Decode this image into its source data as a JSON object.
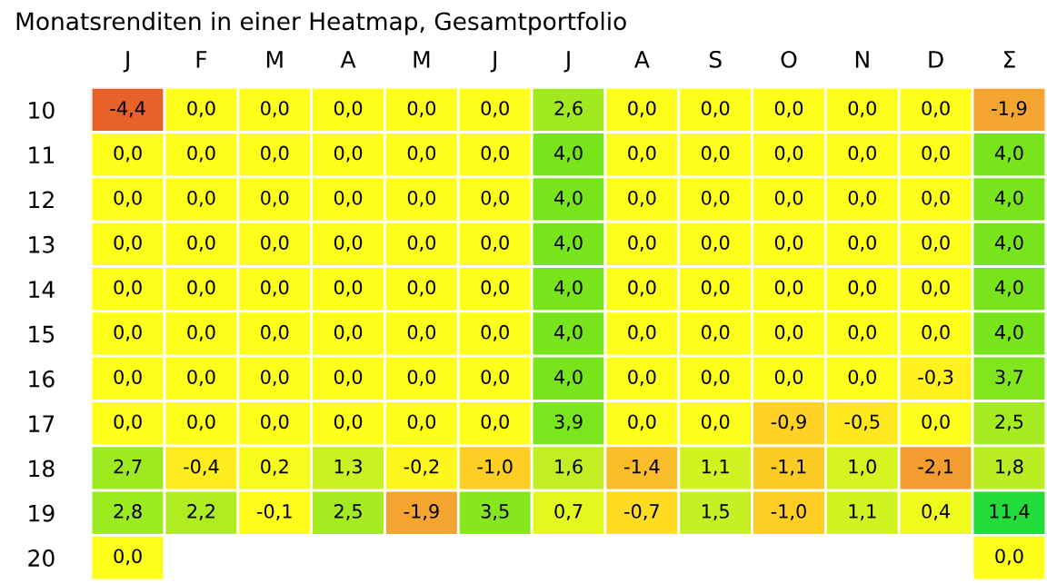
{
  "chart_data": {
    "type": "heatmap",
    "title": "Monatsrenditen in einer Heatmap, Gesamtportfolio",
    "categories": [
      "J",
      "F",
      "M",
      "A",
      "M",
      "J",
      "J",
      "A",
      "S",
      "O",
      "N",
      "D",
      "Σ"
    ],
    "y_categories": [
      "10",
      "11",
      "12",
      "13",
      "14",
      "15",
      "16",
      "17",
      "18",
      "19",
      "20"
    ],
    "cells": [
      [
        -4.4,
        0.0,
        0.0,
        0.0,
        0.0,
        0.0,
        2.6,
        0.0,
        0.0,
        0.0,
        0.0,
        0.0,
        -1.9
      ],
      [
        0.0,
        0.0,
        0.0,
        0.0,
        0.0,
        0.0,
        4.0,
        0.0,
        0.0,
        0.0,
        0.0,
        0.0,
        4.0
      ],
      [
        0.0,
        0.0,
        0.0,
        0.0,
        0.0,
        0.0,
        4.0,
        0.0,
        0.0,
        0.0,
        0.0,
        0.0,
        4.0
      ],
      [
        0.0,
        0.0,
        0.0,
        0.0,
        0.0,
        0.0,
        4.0,
        0.0,
        0.0,
        0.0,
        0.0,
        0.0,
        4.0
      ],
      [
        0.0,
        0.0,
        0.0,
        0.0,
        0.0,
        0.0,
        4.0,
        0.0,
        0.0,
        0.0,
        0.0,
        0.0,
        4.0
      ],
      [
        0.0,
        0.0,
        0.0,
        0.0,
        0.0,
        0.0,
        4.0,
        0.0,
        0.0,
        0.0,
        0.0,
        0.0,
        4.0
      ],
      [
        0.0,
        0.0,
        0.0,
        0.0,
        0.0,
        0.0,
        4.0,
        0.0,
        0.0,
        0.0,
        0.0,
        -0.3,
        3.7
      ],
      [
        0.0,
        0.0,
        0.0,
        0.0,
        0.0,
        0.0,
        3.9,
        0.0,
        0.0,
        -0.9,
        -0.5,
        0.0,
        2.5
      ],
      [
        2.7,
        -0.4,
        0.2,
        1.3,
        -0.2,
        -1.0,
        1.6,
        -1.4,
        1.1,
        -1.1,
        1.0,
        -2.1,
        1.8
      ],
      [
        2.8,
        2.2,
        -0.1,
        2.5,
        -1.9,
        3.5,
        0.7,
        -0.7,
        1.5,
        -1.0,
        1.1,
        0.4,
        11.4
      ],
      [
        0.0,
        null,
        null,
        null,
        null,
        null,
        null,
        null,
        null,
        null,
        null,
        null,
        0.0
      ]
    ],
    "cell_labels": [
      [
        "-4,4",
        "0,0",
        "0,0",
        "0,0",
        "0,0",
        "0,0",
        "2,6",
        "0,0",
        "0,0",
        "0,0",
        "0,0",
        "0,0",
        "-1,9"
      ],
      [
        "0,0",
        "0,0",
        "0,0",
        "0,0",
        "0,0",
        "0,0",
        "4,0",
        "0,0",
        "0,0",
        "0,0",
        "0,0",
        "0,0",
        "4,0"
      ],
      [
        "0,0",
        "0,0",
        "0,0",
        "0,0",
        "0,0",
        "0,0",
        "4,0",
        "0,0",
        "0,0",
        "0,0",
        "0,0",
        "0,0",
        "4,0"
      ],
      [
        "0,0",
        "0,0",
        "0,0",
        "0,0",
        "0,0",
        "0,0",
        "4,0",
        "0,0",
        "0,0",
        "0,0",
        "0,0",
        "0,0",
        "4,0"
      ],
      [
        "0,0",
        "0,0",
        "0,0",
        "0,0",
        "0,0",
        "0,0",
        "4,0",
        "0,0",
        "0,0",
        "0,0",
        "0,0",
        "0,0",
        "4,0"
      ],
      [
        "0,0",
        "0,0",
        "0,0",
        "0,0",
        "0,0",
        "0,0",
        "4,0",
        "0,0",
        "0,0",
        "0,0",
        "0,0",
        "0,0",
        "4,0"
      ],
      [
        "0,0",
        "0,0",
        "0,0",
        "0,0",
        "0,0",
        "0,0",
        "4,0",
        "0,0",
        "0,0",
        "0,0",
        "0,0",
        "-0,3",
        "3,7"
      ],
      [
        "0,0",
        "0,0",
        "0,0",
        "0,0",
        "0,0",
        "0,0",
        "3,9",
        "0,0",
        "0,0",
        "-0,9",
        "-0,5",
        "0,0",
        "2,5"
      ],
      [
        "2,7",
        "-0,4",
        "0,2",
        "1,3",
        "-0,2",
        "-1,0",
        "1,6",
        "-1,4",
        "1,1",
        "-1,1",
        "1,0",
        "-2,1",
        "1,8"
      ],
      [
        "2,8",
        "2,2",
        "-0,1",
        "2,5",
        "-1,9",
        "3,5",
        "0,7",
        "-0,7",
        "1,5",
        "-1,0",
        "1,1",
        "0,4",
        "11,4"
      ],
      [
        "0,0",
        null,
        null,
        null,
        null,
        null,
        null,
        null,
        null,
        null,
        null,
        null,
        "0,0"
      ]
    ]
  }
}
